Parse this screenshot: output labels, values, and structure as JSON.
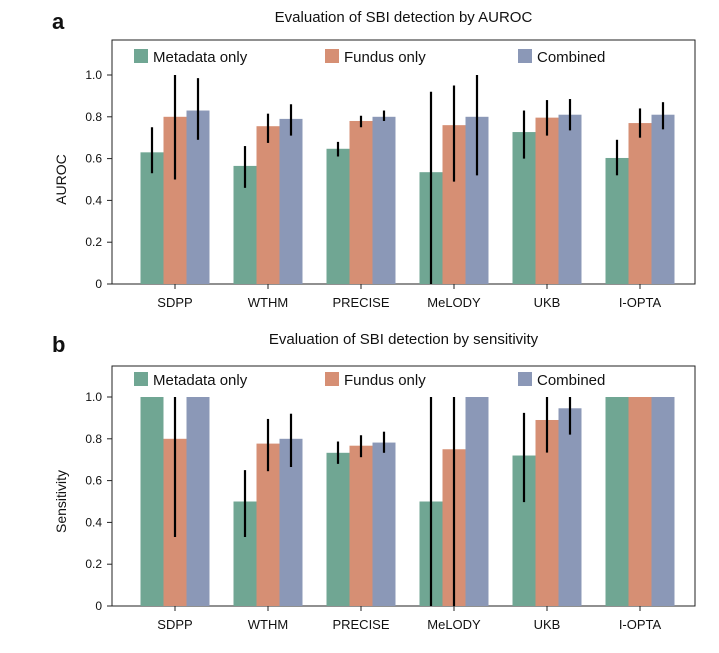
{
  "chart_data": [
    {
      "panel_label": "a",
      "type": "bar",
      "title": "Evaluation of SBI detection by AUROC",
      "xlabel": "",
      "ylabel": "AUROC",
      "ylim": [
        0,
        1.0
      ],
      "yticks": [
        "0",
        "0.2",
        "0.4",
        "0.6",
        "0.8",
        "1.0"
      ],
      "legend_position": "top",
      "categories": [
        "SDPP",
        "WTHM",
        "PRECISE",
        "MeLODY",
        "UKB",
        "I-OPTA"
      ],
      "series": [
        {
          "name": "Metadata only",
          "color": "#70a693",
          "values": [
            0.63,
            0.565,
            0.647,
            0.535,
            0.727,
            0.603
          ],
          "err_low": [
            0.53,
            0.46,
            0.61,
            0.0,
            0.6,
            0.52
          ],
          "err_high": [
            0.75,
            0.66,
            0.68,
            0.92,
            0.83,
            0.69
          ]
        },
        {
          "name": "Fundus only",
          "color": "#d68f74",
          "values": [
            0.8,
            0.755,
            0.78,
            0.76,
            0.796,
            0.77
          ],
          "err_low": [
            0.5,
            0.675,
            0.75,
            0.49,
            0.71,
            0.7
          ],
          "err_high": [
            1.0,
            0.815,
            0.805,
            0.95,
            0.88,
            0.84
          ]
        },
        {
          "name": "Combined",
          "color": "#8b98b7",
          "values": [
            0.83,
            0.79,
            0.8,
            0.8,
            0.81,
            0.81
          ],
          "err_low": [
            0.69,
            0.71,
            0.78,
            0.52,
            0.735,
            0.74
          ],
          "err_high": [
            0.985,
            0.86,
            0.83,
            1.0,
            0.885,
            0.87
          ]
        }
      ]
    },
    {
      "panel_label": "b",
      "type": "bar",
      "title": "Evaluation of SBI detection by sensitivity",
      "xlabel": "",
      "ylabel": "Sensitivity",
      "ylim": [
        0,
        1.0
      ],
      "yticks": [
        "0",
        "0.2",
        "0.4",
        "0.6",
        "0.8",
        "1.0"
      ],
      "legend_position": "top",
      "categories": [
        "SDPP",
        "WTHM",
        "PRECISE",
        "MeLODY",
        "UKB",
        "I-OPTA"
      ],
      "series": [
        {
          "name": "Metadata only",
          "color": "#70a693",
          "values": [
            1.0,
            0.5,
            0.733,
            0.5,
            0.72,
            1.0
          ],
          "err_low": [
            null,
            0.33,
            0.68,
            0.0,
            0.497,
            null
          ],
          "err_high": [
            null,
            0.65,
            0.787,
            1.0,
            0.924,
            null
          ]
        },
        {
          "name": "Fundus only",
          "color": "#d68f74",
          "values": [
            0.8,
            0.777,
            0.767,
            0.75,
            0.89,
            1.0
          ],
          "err_low": [
            0.33,
            0.645,
            0.712,
            0.0,
            0.734,
            null
          ],
          "err_high": [
            1.0,
            0.895,
            0.817,
            1.0,
            1.0,
            null
          ]
        },
        {
          "name": "Combined",
          "color": "#8b98b7",
          "values": [
            1.0,
            0.8,
            0.782,
            1.0,
            0.946,
            1.0
          ],
          "err_low": [
            null,
            0.665,
            0.733,
            null,
            0.82,
            null
          ],
          "err_high": [
            null,
            0.92,
            0.834,
            null,
            1.0,
            null
          ]
        }
      ]
    }
  ]
}
